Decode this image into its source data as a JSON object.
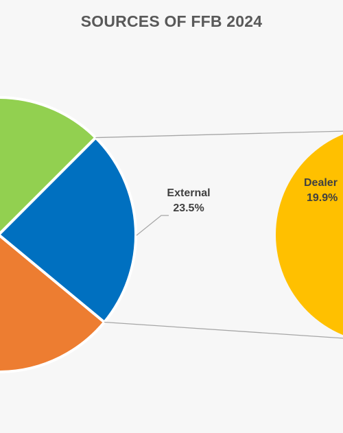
{
  "chart_data": {
    "type": "pie",
    "title": "SOURCES OF FFB 2024",
    "slices": [
      {
        "name": "",
        "color": "#92d050",
        "visible": "partial"
      },
      {
        "name": "External",
        "value": 23.5,
        "value_label": "23.5%",
        "color": "#0070c0"
      },
      {
        "name": "",
        "color": "#ed7d31",
        "visible": "partial"
      }
    ],
    "secondary_pie": {
      "slices": [
        {
          "name": "Dealer",
          "value": 19.9,
          "value_label": "19.9%",
          "color": "#ffc000"
        }
      ]
    },
    "connector_color": "#a6a6a6",
    "legend": "none"
  }
}
